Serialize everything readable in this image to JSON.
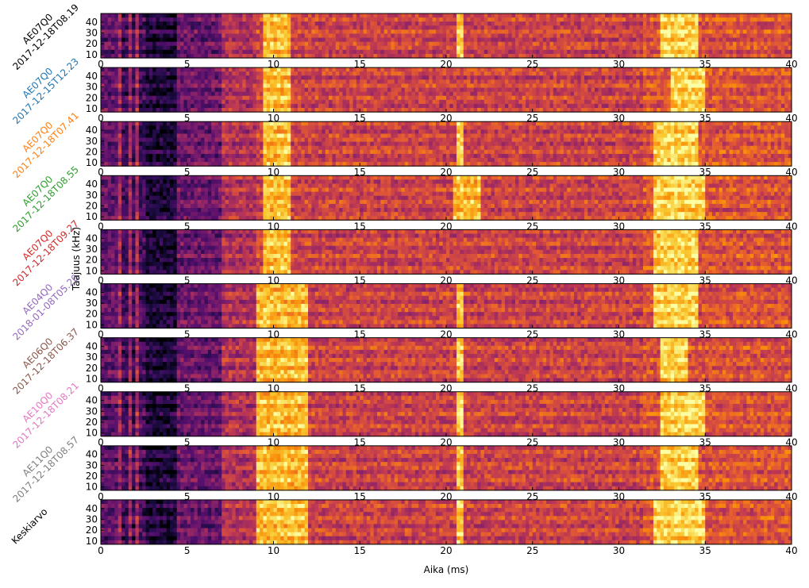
{
  "chart_data": {
    "type": "heatmap",
    "colormap": "inferno",
    "xlabel": "Aika (ms)",
    "ylabel": "Taajuus (kHz)",
    "xlim": [
      0,
      40
    ],
    "ylim": [
      7,
      48
    ],
    "xticks": [
      0,
      5,
      10,
      15,
      20,
      25,
      30,
      35,
      40
    ],
    "yticks": [
      10,
      20,
      30,
      40
    ],
    "panels": [
      {
        "label_line1": "AE07Q0",
        "label_line2": "2017-12-18T08.19",
        "color": "#000000",
        "bright_regions": [
          [
            9.5,
            11
          ],
          [
            20.7,
            21.0
          ],
          [
            32.5,
            34.5
          ]
        ]
      },
      {
        "label_line1": "AE07Q0",
        "label_line2": "2017-12-15T12.23",
        "color": "#1f77b4",
        "bright_regions": [
          [
            9.5,
            11
          ],
          [
            33,
            35
          ]
        ]
      },
      {
        "label_line1": "AE07Q0",
        "label_line2": "2017-12-18T07.41",
        "color": "#ff7f0e",
        "bright_regions": [
          [
            9.5,
            11
          ],
          [
            20.7,
            21.0
          ],
          [
            32,
            34.5
          ]
        ]
      },
      {
        "label_line1": "AE07Q0",
        "label_line2": "2017-12-18T08.55",
        "color": "#2ca02c",
        "bright_regions": [
          [
            9.5,
            11
          ],
          [
            20.5,
            22
          ],
          [
            32,
            35
          ]
        ]
      },
      {
        "label_line1": "AE07Q0",
        "label_line2": "2017-12-18T09.27",
        "color": "#d62728",
        "bright_regions": [
          [
            9.5,
            11
          ],
          [
            32,
            34.5
          ]
        ]
      },
      {
        "label_line1": "AE04Q0",
        "label_line2": "2018-01-08T05.20",
        "color": "#9467bd",
        "bright_regions": [
          [
            9,
            12
          ],
          [
            20.7,
            21.0
          ],
          [
            32,
            34.5
          ]
        ]
      },
      {
        "label_line1": "AE06Q0",
        "label_line2": "2017-12-18T06.37",
        "color": "#8c564b",
        "bright_regions": [
          [
            9,
            12
          ],
          [
            20.7,
            21.0
          ],
          [
            32.5,
            34
          ]
        ]
      },
      {
        "label_line1": "AE10Q0",
        "label_line2": "2017-12-18T08.21",
        "color": "#e377c2",
        "bright_regions": [
          [
            9,
            12
          ],
          [
            20.7,
            21.0
          ],
          [
            32.5,
            35
          ]
        ]
      },
      {
        "label_line1": "AE11Q0",
        "label_line2": "2017-12-18T08.57",
        "color": "#7f7f7f",
        "bright_regions": [
          [
            9,
            12
          ],
          [
            20.7,
            21.0
          ],
          [
            32.5,
            34.5
          ]
        ]
      },
      {
        "label_line1": "Keskiarvo",
        "label_line2": "",
        "color": "#000000",
        "bright_regions": [
          [
            9,
            12
          ],
          [
            20.7,
            21.0
          ],
          [
            32,
            35
          ]
        ]
      }
    ]
  }
}
